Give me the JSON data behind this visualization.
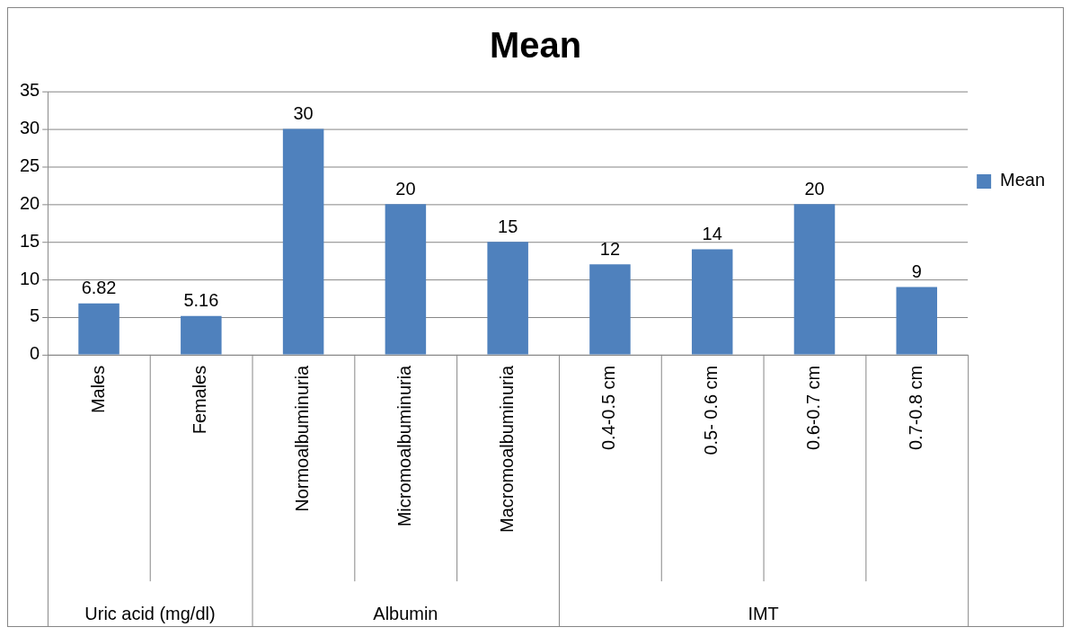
{
  "chart_data": {
    "type": "bar",
    "title": "Mean",
    "categories": [
      "Males",
      "Females",
      "Normoalbuminuria",
      "Micromoalbuminuria",
      "Macromoalbuminuria",
      "0.4-0.5 cm",
      "0.5- 0.6 cm",
      "0.6-0.7 cm",
      "0.7-0.8 cm"
    ],
    "series": [
      {
        "name": "Mean",
        "color": "#4f81bd",
        "values": [
          6.82,
          5.16,
          30,
          20,
          15,
          12,
          14,
          20,
          9
        ]
      }
    ],
    "ylim": [
      0,
      35
    ],
    "yticks": [
      0,
      5,
      10,
      15,
      20,
      25,
      30,
      35
    ],
    "grid": "y",
    "legend": "right",
    "data_labels": true,
    "annotations": [
      "Uric acid (mg/dl)",
      "Albumin",
      "IMT"
    ]
  }
}
